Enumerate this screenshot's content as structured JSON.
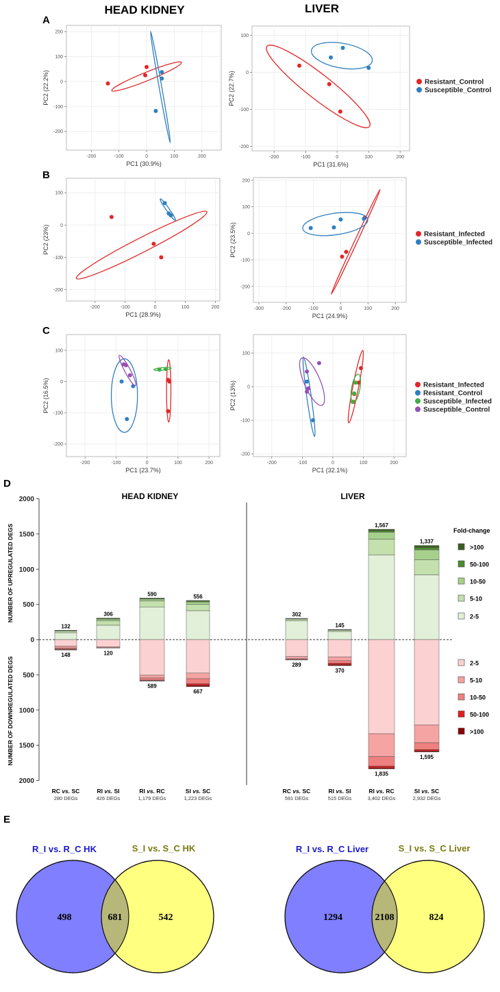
{
  "headers": {
    "left": "HEAD KIDNEY",
    "right": "LIVER"
  },
  "panel_letters": {
    "a": "A",
    "b": "B",
    "c": "C",
    "d": "D",
    "e": "E"
  },
  "colors": {
    "resistant": "#e32626",
    "susceptible": "#2f7fc0",
    "green": "#3fae45",
    "purple": "#9650b3",
    "venn_left": "#7f7fff",
    "venn_right": "#ffff80",
    "venn_overlap": "#b8b77a"
  },
  "chart_data": [
    {
      "id": "A-HK",
      "type": "scatter",
      "xlabel": "PC1 (30.9%)",
      "ylabel": "PC2 (22.2%)",
      "xlim": [
        -290,
        270
      ],
      "ylim": [
        -275,
        225
      ],
      "xticks": [
        -200,
        -100,
        0,
        100,
        200
      ],
      "yticks": [
        -200,
        -100,
        0,
        100,
        200
      ],
      "series": [
        {
          "name": "Resistant_Control",
          "color": "#e32626",
          "points": [
            [
              -140,
              -8
            ],
            [
              -5,
              25
            ],
            [
              0,
              58
            ]
          ],
          "ellipse": {
            "cx": 0,
            "cy": 20,
            "rx": 143,
            "ry": 16,
            "angle": 22
          }
        },
        {
          "name": "Susceptible_Control",
          "color": "#2f7fc0",
          "points": [
            [
              55,
              38
            ],
            [
              55,
              12
            ],
            [
              33,
              -118
            ]
          ],
          "ellipse": {
            "cx": 50,
            "cy": -22,
            "rx": 215,
            "ry": 5,
            "angle": -80
          }
        }
      ]
    },
    {
      "id": "A-LV",
      "type": "scatter",
      "xlabel": "PC1 (31.6%)",
      "ylabel": "PC2 (22.7%)",
      "xlim": [
        -270,
        230
      ],
      "ylim": [
        -212,
        125
      ],
      "xticks": [
        -200,
        -100,
        0,
        100,
        200
      ],
      "yticks": [
        -200,
        -100,
        0,
        100
      ],
      "series": [
        {
          "name": "Resistant_Control",
          "color": "#e32626",
          "points": [
            [
              -120,
              18
            ],
            [
              -25,
              -32
            ],
            [
              10,
              -106
            ]
          ],
          "ellipse": {
            "cx": -60,
            "cy": -38,
            "rx": 190,
            "ry": 36,
            "angle": -38
          }
        },
        {
          "name": "Susceptible_Control",
          "color": "#2f7fc0",
          "points": [
            [
              -20,
              40
            ],
            [
              18,
              66
            ],
            [
              100,
              12
            ]
          ],
          "ellipse": {
            "cx": 15,
            "cy": 45,
            "rx": 90,
            "ry": 36,
            "angle": -10
          }
        }
      ]
    },
    {
      "id": "B-HK",
      "type": "scatter",
      "xlabel": "PC1 (28.9%)",
      "ylabel": "PC2 (23%)",
      "xlim": [
        -295,
        215
      ],
      "ylim": [
        -235,
        145
      ],
      "xticks": [
        -200,
        -100,
        0,
        100,
        200
      ],
      "yticks": [
        -200,
        -100,
        0,
        100
      ],
      "series": [
        {
          "name": "Resistant_Infected",
          "color": "#e32626",
          "points": [
            [
              -145,
              25
            ],
            [
              -5,
              -58
            ],
            [
              20,
              -100
            ]
          ],
          "ellipse": {
            "cx": -45,
            "cy": -62,
            "rx": 235,
            "ry": 23,
            "angle": 27
          }
        },
        {
          "name": "Susceptible_Infected",
          "color": "#2f7fc0",
          "points": [
            [
              32,
              68
            ],
            [
              45,
              36
            ],
            [
              52,
              30
            ]
          ],
          "ellipse": {
            "cx": 42,
            "cy": 48,
            "rx": 42,
            "ry": 5,
            "angle": -55
          }
        }
      ]
    },
    {
      "id": "B-LV",
      "type": "scatter",
      "xlabel": "PC1 (24.9%)",
      "ylabel": "PC2 (23.5%)",
      "xlim": [
        -320,
        240
      ],
      "ylim": [
        -260,
        210
      ],
      "xticks": [
        -300,
        -200,
        -100,
        0,
        100,
        200
      ],
      "yticks": [
        -200,
        -100,
        0,
        100,
        200
      ],
      "series": [
        {
          "name": "Resistant_Infected",
          "color": "#e32626",
          "points": [
            [
              5,
              -88
            ],
            [
              20,
              -70
            ],
            [
              88,
              58
            ]
          ],
          "ellipse": {
            "cx": 55,
            "cy": -32,
            "rx": 215,
            "ry": 5,
            "angle": 65
          }
        },
        {
          "name": "Susceptible_Infected",
          "color": "#2f7fc0",
          "points": [
            [
              -110,
              20
            ],
            [
              -25,
              22
            ],
            [
              0,
              52
            ],
            [
              85,
              55
            ]
          ],
          "ellipse": {
            "cx": -20,
            "cy": 35,
            "rx": 122,
            "ry": 40,
            "angle": 8
          }
        }
      ]
    },
    {
      "id": "C-HK",
      "type": "scatter",
      "xlabel": "PC1 (23.7%)",
      "ylabel": "PC2 (16.5%)",
      "xlim": [
        -260,
        235
      ],
      "ylim": [
        -240,
        150
      ],
      "xticks": [
        -200,
        -100,
        0,
        100,
        200
      ],
      "yticks": [
        -200,
        -100,
        0,
        100
      ],
      "series": [
        {
          "name": "Resistant_Infected",
          "color": "#e32626",
          "points": [
            [
              68,
              5
            ],
            [
              72,
              0
            ],
            [
              68,
              -95
            ]
          ],
          "ellipse": {
            "cx": 70,
            "cy": -30,
            "rx": 100,
            "ry": 7,
            "angle": 90
          }
        },
        {
          "name": "Resistant_Control",
          "color": "#2f7fc0",
          "points": [
            [
              -82,
              0
            ],
            [
              -65,
              -120
            ],
            [
              -45,
              -15
            ]
          ],
          "ellipse": {
            "cx": -73,
            "cy": -45,
            "rx": 118,
            "ry": 42,
            "angle": 90
          }
        },
        {
          "name": "Susceptible_Infected",
          "color": "#3fae45",
          "points": [
            [
              40,
              38
            ],
            [
              60,
              40
            ]
          ],
          "ellipse": {
            "cx": 50,
            "cy": 40,
            "rx": 28,
            "ry": 4,
            "angle": 5
          }
        },
        {
          "name": "Susceptible_Control",
          "color": "#9650b3",
          "points": [
            [
              -75,
              55
            ],
            [
              -68,
              52
            ],
            [
              -55,
              20
            ]
          ],
          "ellipse": {
            "cx": -63,
            "cy": 35,
            "rx": 55,
            "ry": 9,
            "angle": -62
          }
        }
      ]
    },
    {
      "id": "C-LV",
      "type": "scatter",
      "xlabel": "PC1 (32.1%)",
      "ylabel": "PC2 (13%)",
      "xlim": [
        -260,
        240
      ],
      "ylim": [
        -208,
        155
      ],
      "xticks": [
        -200,
        -100,
        0,
        100,
        200
      ],
      "yticks": [
        -200,
        -100,
        0,
        100
      ],
      "series": [
        {
          "name": "Resistant_Infected",
          "color": "#e32626",
          "points": [
            [
              92,
              55
            ],
            [
              85,
              12
            ],
            [
              70,
              -22
            ],
            [
              68,
              -45
            ]
          ],
          "ellipse": {
            "cx": 75,
            "cy": 0,
            "rx": 115,
            "ry": 9,
            "angle": 79
          }
        },
        {
          "name": "Resistant_Control",
          "color": "#2f7fc0",
          "points": [
            [
              -85,
              15
            ],
            [
              -65,
              -100
            ]
          ],
          "ellipse": {
            "cx": -78,
            "cy": -30,
            "rx": 125,
            "ry": 7,
            "angle": -82
          }
        },
        {
          "name": "Susceptible_Infected",
          "color": "#3fae45",
          "points": [
            [
              75,
              12
            ],
            [
              70,
              -20
            ],
            [
              65,
              -45
            ]
          ],
          "ellipse": {
            "cx": 75,
            "cy": -5,
            "rx": 45,
            "ry": 13,
            "angle": 80
          }
        },
        {
          "name": "Susceptible_Control",
          "color": "#9650b3",
          "points": [
            [
              -85,
              45
            ],
            [
              -45,
              70
            ],
            [
              -80,
              -5
            ],
            [
              -85,
              -15
            ]
          ],
          "ellipse": {
            "cx": -68,
            "cy": 15,
            "rx": 80,
            "ry": 25,
            "angle": -67
          }
        }
      ]
    },
    {
      "id": "D",
      "type": "bar",
      "title_left": "HEAD KIDNEY",
      "title_right": "LIVER",
      "ylabel_up": "NUMBER OF UPREGULATED DEGS",
      "ylabel_down": "NUMBER OF DOWNREGULATED DEGS",
      "ylim": [
        -2000,
        2000
      ],
      "yticks": [
        {
          "value": 2000,
          "label": "2000"
        },
        {
          "value": 1500,
          "label": "1500"
        },
        {
          "value": 1000,
          "label": "1000"
        },
        {
          "value": 500,
          "label": "500"
        },
        {
          "value": 0,
          "label": "0"
        },
        {
          "value": -500,
          "label": "500"
        },
        {
          "value": -1000,
          "label": "1000"
        },
        {
          "value": -1500,
          "label": "1500"
        },
        {
          "value": -2000,
          "label": "2000"
        }
      ],
      "legend_title": "Fold-change",
      "up_legend": [
        {
          "label": ">100",
          "color": "#3b5e23"
        },
        {
          "label": "50-100",
          "color": "#4d8c2f"
        },
        {
          "label": "10-50",
          "color": "#a7d08c"
        },
        {
          "label": "5-10",
          "color": "#c3e0ad"
        },
        {
          "label": "2-5",
          "color": "#e2efd9"
        }
      ],
      "down_legend": [
        {
          "label": "2-5",
          "color": "#fbd1d1"
        },
        {
          "label": "5-10",
          "color": "#f5a3a3"
        },
        {
          "label": "10-50",
          "color": "#ef8080"
        },
        {
          "label": "50-100",
          "color": "#e02020"
        },
        {
          "label": ">100",
          "color": "#8b0000"
        }
      ],
      "bars": [
        {
          "group": "HK",
          "name": "RC",
          "name2": "SC",
          "degs": "280 DEGs",
          "up_total": "132",
          "down_total": "148",
          "up": [
            98,
            22,
            8,
            3,
            1
          ],
          "down": [
            92,
            26,
            15,
            9,
            6
          ]
        },
        {
          "group": "HK",
          "name": "RI",
          "name2": "SI",
          "degs": "426 DEGs",
          "up_total": "306",
          "down_total": "120",
          "up": [
            205,
            60,
            25,
            10,
            6
          ],
          "down": [
            100,
            14,
            4,
            1,
            1
          ]
        },
        {
          "group": "HK",
          "name": "RI",
          "name2": "RC",
          "degs": "1,179 DEGs",
          "up_total": "590",
          "down_total": "589",
          "up": [
            460,
            90,
            25,
            10,
            5
          ],
          "down": [
            505,
            40,
            30,
            9,
            5
          ]
        },
        {
          "group": "HK",
          "name": "SI",
          "name2": "SC",
          "degs": "1,223 DEGs",
          "up_total": "556",
          "down_total": "667",
          "up": [
            410,
            90,
            35,
            15,
            6
          ],
          "down": [
            475,
            80,
            70,
            24,
            18
          ]
        },
        {
          "group": "LV",
          "name": "RC",
          "name2": "SC",
          "degs": "591 DEGs",
          "up_total": "302",
          "down_total": "289",
          "up": [
            265,
            25,
            7,
            3,
            2
          ],
          "down": [
            240,
            30,
            12,
            4,
            3
          ]
        },
        {
          "group": "LV",
          "name": "RI",
          "name2": "SI",
          "degs": "515 DEGs",
          "up_total": "145",
          "down_total": "370",
          "up": [
            115,
            18,
            7,
            3,
            2
          ],
          "down": [
            245,
            55,
            35,
            20,
            15
          ]
        },
        {
          "group": "LV",
          "name": "RI",
          "name2": "RC",
          "degs": "3,402 DEGs",
          "up_total": "1,567",
          "down_total": "1,835",
          "up": [
            1200,
            225,
            100,
            22,
            20
          ],
          "down": [
            1335,
            325,
            135,
            25,
            15
          ]
        },
        {
          "group": "LV",
          "name": "SI",
          "name2": "SC",
          "degs": "2,932 DEGs",
          "up_total": "1,337",
          "down_total": "1,595",
          "up": [
            920,
            215,
            140,
            32,
            30
          ],
          "down": [
            1210,
            255,
            95,
            20,
            15
          ]
        }
      ]
    },
    {
      "id": "E",
      "type": "venn",
      "diagrams": [
        {
          "left_label": "R_I vs. R_C HK",
          "right_label": "S_I vs. S_C HK",
          "left_only": "498",
          "overlap": "681",
          "right_only": "542"
        },
        {
          "left_label": "R_I vs. R_C Liver",
          "right_label": "S_I vs. S_C Liver",
          "left_only": "1294",
          "overlap": "2108",
          "right_only": "824"
        }
      ]
    }
  ],
  "legends": {
    "a": [
      "Resistant_Control",
      "Susceptible_Control"
    ],
    "b": [
      "Resistant_Infected",
      "Susceptible_Infected"
    ],
    "c": [
      "Resistant_Infected",
      "Resistant_Control",
      "Susceptible_Infected",
      "Susceptible_Control"
    ]
  }
}
